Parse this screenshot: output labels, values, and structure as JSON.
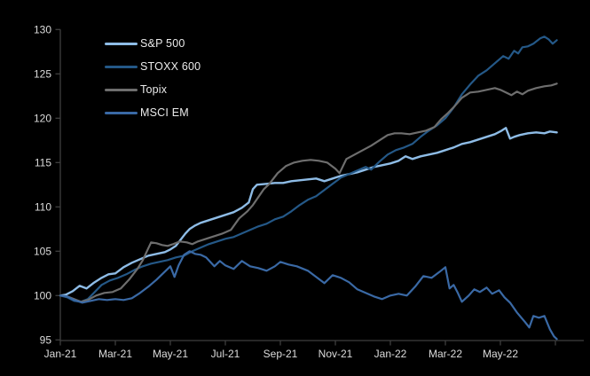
{
  "chart": {
    "background": "#000000",
    "axis_color": "#3f3f3f",
    "tick_label_color": "#dcdcdc",
    "legend_text_color": "#eaeaea"
  },
  "chart_data": {
    "type": "line",
    "title": "",
    "xlabel": "",
    "ylabel": "",
    "grid": false,
    "legend_position": "top-left",
    "x_axis": {
      "unit": "months-since-Jan-2021",
      "tick_months": [
        0,
        2,
        4,
        6,
        8,
        10,
        12,
        14,
        16,
        18
      ],
      "tick_labels": [
        "Jan-21",
        "Mar-21",
        "May-21",
        "Jul-21",
        "Sep-21",
        "Nov-21",
        "Jan-22",
        "Mar-22",
        "May-22",
        ""
      ],
      "range_months": [
        0,
        19
      ]
    },
    "y_axis": {
      "ticks": [
        95,
        100,
        105,
        110,
        115,
        120,
        125,
        130
      ],
      "range": [
        95,
        130
      ]
    },
    "series": [
      {
        "name": "S&P 500",
        "color": "#8ebce6",
        "width": 2.4,
        "points": [
          [
            0,
            100
          ],
          [
            0.2,
            100.1
          ],
          [
            0.45,
            100.5
          ],
          [
            0.7,
            101.1
          ],
          [
            0.95,
            100.8
          ],
          [
            1.2,
            101.4
          ],
          [
            1.5,
            102.0
          ],
          [
            1.75,
            102.4
          ],
          [
            2.0,
            102.5
          ],
          [
            2.3,
            103.2
          ],
          [
            2.6,
            103.7
          ],
          [
            2.9,
            104.1
          ],
          [
            3.2,
            104.5
          ],
          [
            3.5,
            104.7
          ],
          [
            3.8,
            104.9
          ],
          [
            4.0,
            105.2
          ],
          [
            4.2,
            105.6
          ],
          [
            4.35,
            106.2
          ],
          [
            4.55,
            107.0
          ],
          [
            4.7,
            107.5
          ],
          [
            4.9,
            107.9
          ],
          [
            5.1,
            108.2
          ],
          [
            5.4,
            108.5
          ],
          [
            5.7,
            108.8
          ],
          [
            6.0,
            109.1
          ],
          [
            6.3,
            109.4
          ],
          [
            6.6,
            109.9
          ],
          [
            6.85,
            110.5
          ],
          [
            7.0,
            112.0
          ],
          [
            7.15,
            112.5
          ],
          [
            7.5,
            112.6
          ],
          [
            7.8,
            112.7
          ],
          [
            8.1,
            112.7
          ],
          [
            8.4,
            112.9
          ],
          [
            8.7,
            113.0
          ],
          [
            9.0,
            113.1
          ],
          [
            9.3,
            113.2
          ],
          [
            9.6,
            112.9
          ],
          [
            9.9,
            113.2
          ],
          [
            10.2,
            113.5
          ],
          [
            10.5,
            113.7
          ],
          [
            10.8,
            113.9
          ],
          [
            11.1,
            114.2
          ],
          [
            11.4,
            114.5
          ],
          [
            11.7,
            114.7
          ],
          [
            12.0,
            114.9
          ],
          [
            12.3,
            115.2
          ],
          [
            12.55,
            115.7
          ],
          [
            12.8,
            115.4
          ],
          [
            13.1,
            115.7
          ],
          [
            13.4,
            115.9
          ],
          [
            13.7,
            116.1
          ],
          [
            14.0,
            116.4
          ],
          [
            14.3,
            116.7
          ],
          [
            14.6,
            117.1
          ],
          [
            14.9,
            117.3
          ],
          [
            15.2,
            117.6
          ],
          [
            15.5,
            117.9
          ],
          [
            15.8,
            118.2
          ],
          [
            16.05,
            118.6
          ],
          [
            16.2,
            118.9
          ],
          [
            16.35,
            117.7
          ],
          [
            16.5,
            117.9
          ],
          [
            16.7,
            118.1
          ],
          [
            17.0,
            118.3
          ],
          [
            17.3,
            118.4
          ],
          [
            17.6,
            118.3
          ],
          [
            17.8,
            118.5
          ],
          [
            18.05,
            118.4
          ]
        ]
      },
      {
        "name": "STOXX 600",
        "color": "#245887",
        "width": 2.2,
        "points": [
          [
            0,
            100
          ],
          [
            0.25,
            99.8
          ],
          [
            0.5,
            99.4
          ],
          [
            0.75,
            99.3
          ],
          [
            1.0,
            99.6
          ],
          [
            1.25,
            100.4
          ],
          [
            1.5,
            101.2
          ],
          [
            1.8,
            101.7
          ],
          [
            2.1,
            102.0
          ],
          [
            2.4,
            102.4
          ],
          [
            2.7,
            102.9
          ],
          [
            3.0,
            103.3
          ],
          [
            3.3,
            103.6
          ],
          [
            3.6,
            103.8
          ],
          [
            3.9,
            104.0
          ],
          [
            4.2,
            104.3
          ],
          [
            4.5,
            104.5
          ],
          [
            4.8,
            105.0
          ],
          [
            5.1,
            105.4
          ],
          [
            5.4,
            105.8
          ],
          [
            5.7,
            106.1
          ],
          [
            6.0,
            106.4
          ],
          [
            6.3,
            106.6
          ],
          [
            6.6,
            107.0
          ],
          [
            6.9,
            107.4
          ],
          [
            7.2,
            107.8
          ],
          [
            7.5,
            108.1
          ],
          [
            7.8,
            108.6
          ],
          [
            8.1,
            108.9
          ],
          [
            8.4,
            109.5
          ],
          [
            8.7,
            110.2
          ],
          [
            9.0,
            110.8
          ],
          [
            9.3,
            111.2
          ],
          [
            9.6,
            111.9
          ],
          [
            9.9,
            112.6
          ],
          [
            10.2,
            113.3
          ],
          [
            10.5,
            113.7
          ],
          [
            10.8,
            114.1
          ],
          [
            11.1,
            114.5
          ],
          [
            11.3,
            114.2
          ],
          [
            11.6,
            115.1
          ],
          [
            11.9,
            115.9
          ],
          [
            12.2,
            116.4
          ],
          [
            12.5,
            116.7
          ],
          [
            12.8,
            117.1
          ],
          [
            13.1,
            117.9
          ],
          [
            13.4,
            118.6
          ],
          [
            13.7,
            119.2
          ],
          [
            14.0,
            120.0
          ],
          [
            14.3,
            121.2
          ],
          [
            14.6,
            122.7
          ],
          [
            14.9,
            123.8
          ],
          [
            15.2,
            124.8
          ],
          [
            15.5,
            125.4
          ],
          [
            15.8,
            126.2
          ],
          [
            16.1,
            127.0
          ],
          [
            16.3,
            126.7
          ],
          [
            16.5,
            127.6
          ],
          [
            16.65,
            127.3
          ],
          [
            16.8,
            128.0
          ],
          [
            17.0,
            128.1
          ],
          [
            17.2,
            128.4
          ],
          [
            17.45,
            129.0
          ],
          [
            17.6,
            129.2
          ],
          [
            17.75,
            128.9
          ],
          [
            17.9,
            128.4
          ],
          [
            18.05,
            128.8
          ]
        ]
      },
      {
        "name": "Topix",
        "color": "#6e6e6e",
        "width": 2.2,
        "points": [
          [
            0,
            100
          ],
          [
            0.25,
            99.9
          ],
          [
            0.5,
            99.6
          ],
          [
            0.75,
            99.3
          ],
          [
            1.0,
            99.5
          ],
          [
            1.3,
            100.0
          ],
          [
            1.6,
            100.3
          ],
          [
            1.9,
            100.4
          ],
          [
            2.2,
            100.8
          ],
          [
            2.5,
            101.8
          ],
          [
            2.8,
            103.0
          ],
          [
            3.0,
            104.0
          ],
          [
            3.15,
            105.0
          ],
          [
            3.3,
            106.0
          ],
          [
            3.5,
            105.9
          ],
          [
            3.7,
            105.7
          ],
          [
            3.9,
            105.6
          ],
          [
            4.1,
            105.8
          ],
          [
            4.35,
            106.1
          ],
          [
            4.6,
            106.0
          ],
          [
            4.8,
            105.8
          ],
          [
            5.0,
            106.1
          ],
          [
            5.3,
            106.4
          ],
          [
            5.6,
            106.7
          ],
          [
            5.9,
            107.0
          ],
          [
            6.2,
            107.4
          ],
          [
            6.5,
            108.7
          ],
          [
            6.8,
            109.5
          ],
          [
            7.0,
            110.2
          ],
          [
            7.2,
            111.1
          ],
          [
            7.4,
            112.0
          ],
          [
            7.6,
            112.6
          ],
          [
            7.9,
            113.8
          ],
          [
            8.2,
            114.6
          ],
          [
            8.5,
            115.0
          ],
          [
            8.8,
            115.2
          ],
          [
            9.1,
            115.3
          ],
          [
            9.4,
            115.2
          ],
          [
            9.7,
            115.0
          ],
          [
            10.0,
            114.3
          ],
          [
            10.15,
            113.8
          ],
          [
            10.4,
            115.4
          ],
          [
            10.7,
            115.9
          ],
          [
            11.0,
            116.4
          ],
          [
            11.3,
            116.9
          ],
          [
            11.6,
            117.5
          ],
          [
            11.9,
            118.1
          ],
          [
            12.15,
            118.3
          ],
          [
            12.4,
            118.3
          ],
          [
            12.7,
            118.2
          ],
          [
            13.0,
            118.4
          ],
          [
            13.3,
            118.6
          ],
          [
            13.6,
            119.0
          ],
          [
            13.85,
            119.9
          ],
          [
            14.1,
            120.6
          ],
          [
            14.35,
            121.4
          ],
          [
            14.6,
            122.3
          ],
          [
            14.9,
            122.9
          ],
          [
            15.2,
            123.0
          ],
          [
            15.5,
            123.2
          ],
          [
            15.8,
            123.4
          ],
          [
            16.0,
            123.2
          ],
          [
            16.2,
            122.9
          ],
          [
            16.4,
            122.6
          ],
          [
            16.6,
            123.0
          ],
          [
            16.8,
            122.7
          ],
          [
            17.0,
            123.1
          ],
          [
            17.3,
            123.4
          ],
          [
            17.6,
            123.6
          ],
          [
            17.85,
            123.7
          ],
          [
            18.05,
            123.9
          ]
        ]
      },
      {
        "name": "MSCI EM",
        "color": "#3a69a5",
        "width": 2.2,
        "points": [
          [
            0,
            100
          ],
          [
            0.25,
            99.9
          ],
          [
            0.5,
            99.5
          ],
          [
            0.8,
            99.2
          ],
          [
            1.1,
            99.4
          ],
          [
            1.4,
            99.6
          ],
          [
            1.7,
            99.5
          ],
          [
            2.0,
            99.6
          ],
          [
            2.3,
            99.5
          ],
          [
            2.6,
            99.7
          ],
          [
            2.9,
            100.3
          ],
          [
            3.2,
            101.0
          ],
          [
            3.5,
            101.8
          ],
          [
            3.8,
            102.7
          ],
          [
            4.0,
            103.3
          ],
          [
            4.15,
            102.1
          ],
          [
            4.3,
            103.4
          ],
          [
            4.5,
            104.6
          ],
          [
            4.7,
            105.0
          ],
          [
            4.9,
            104.7
          ],
          [
            5.1,
            104.6
          ],
          [
            5.3,
            104.3
          ],
          [
            5.6,
            103.3
          ],
          [
            5.8,
            103.9
          ],
          [
            6.0,
            103.4
          ],
          [
            6.3,
            103.0
          ],
          [
            6.6,
            103.9
          ],
          [
            6.9,
            103.3
          ],
          [
            7.2,
            103.1
          ],
          [
            7.5,
            102.8
          ],
          [
            7.8,
            103.3
          ],
          [
            8.0,
            103.8
          ],
          [
            8.3,
            103.5
          ],
          [
            8.6,
            103.3
          ],
          [
            9.0,
            102.8
          ],
          [
            9.3,
            102.1
          ],
          [
            9.6,
            101.4
          ],
          [
            9.9,
            102.3
          ],
          [
            10.2,
            102.0
          ],
          [
            10.5,
            101.5
          ],
          [
            10.8,
            100.7
          ],
          [
            11.1,
            100.3
          ],
          [
            11.4,
            99.9
          ],
          [
            11.7,
            99.6
          ],
          [
            12.0,
            100.0
          ],
          [
            12.3,
            100.2
          ],
          [
            12.6,
            100.0
          ],
          [
            12.9,
            101.0
          ],
          [
            13.2,
            102.2
          ],
          [
            13.5,
            102.0
          ],
          [
            13.8,
            102.7
          ],
          [
            14.0,
            103.2
          ],
          [
            14.15,
            100.8
          ],
          [
            14.3,
            101.2
          ],
          [
            14.45,
            100.3
          ],
          [
            14.6,
            99.3
          ],
          [
            14.85,
            100.0
          ],
          [
            15.05,
            100.7
          ],
          [
            15.25,
            100.4
          ],
          [
            15.5,
            100.9
          ],
          [
            15.7,
            100.2
          ],
          [
            15.95,
            100.6
          ],
          [
            16.15,
            99.8
          ],
          [
            16.35,
            99.2
          ],
          [
            16.6,
            98.1
          ],
          [
            16.9,
            97.0
          ],
          [
            17.05,
            96.4
          ],
          [
            17.2,
            97.7
          ],
          [
            17.4,
            97.5
          ],
          [
            17.6,
            97.7
          ],
          [
            17.8,
            96.2
          ],
          [
            17.95,
            95.4
          ],
          [
            18.05,
            95.1
          ]
        ]
      }
    ]
  }
}
